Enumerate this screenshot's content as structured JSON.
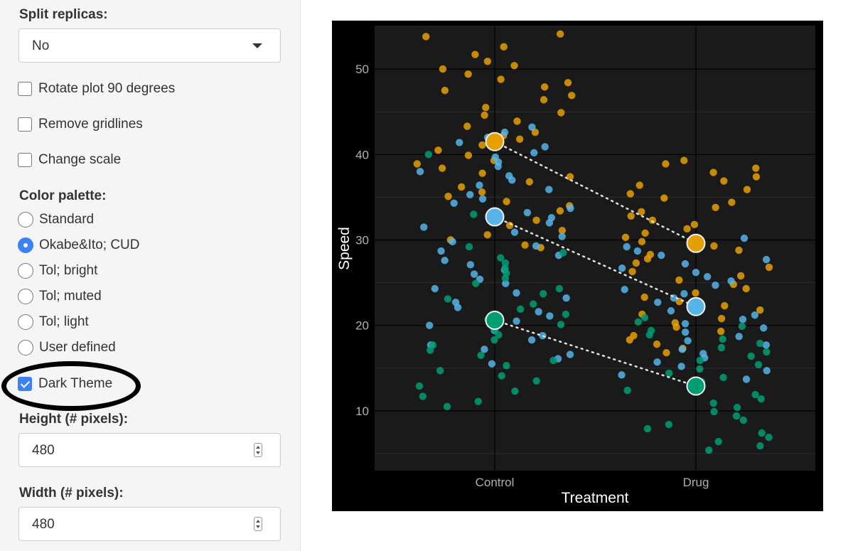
{
  "sidebar": {
    "split_replicas_label": "Split replicas:",
    "split_replicas_value": "No",
    "rotate_label": "Rotate plot 90 degrees",
    "rotate_checked": false,
    "gridlines_label": "Remove gridlines",
    "gridlines_checked": false,
    "scale_label": "Change scale",
    "scale_checked": false,
    "palette_label": "Color palette:",
    "palette_options": [
      {
        "label": "Standard",
        "selected": false
      },
      {
        "label": "Okabe&Ito; CUD",
        "selected": true
      },
      {
        "label": "Tol; bright",
        "selected": false
      },
      {
        "label": "Tol; muted",
        "selected": false
      },
      {
        "label": "Tol; light",
        "selected": false
      },
      {
        "label": "User defined",
        "selected": false
      }
    ],
    "dark_theme_label": "Dark Theme",
    "dark_theme_checked": true,
    "height_label": "Height (# pixels):",
    "height_value": "480",
    "width_label": "Width (# pixels):",
    "width_value": "480"
  },
  "colors": {
    "accent": "#3b82f6",
    "annotation": "#000000",
    "plot_background": "#000000",
    "panel_background": "#1a1a1a",
    "replica_1": "#e69f00",
    "replica_2": "#56b4e9",
    "replica_3": "#009e73"
  },
  "chart_data": {
    "type": "scatter",
    "title": "",
    "xlabel": "Treatment",
    "ylabel": "Speed",
    "categories": [
      "Control",
      "Drug"
    ],
    "y_ticks": [
      10,
      20,
      30,
      40,
      50
    ],
    "ylim": [
      3,
      55
    ],
    "grid": true,
    "legend": "none",
    "replica_means": [
      {
        "color": "#e69f00",
        "values": [
          41.5,
          29.6
        ]
      },
      {
        "color": "#56b4e9",
        "values": [
          32.7,
          22.2
        ]
      },
      {
        "color": "#009e73",
        "values": [
          20.6,
          12.9
        ]
      }
    ],
    "points": [
      {
        "cat": "Control",
        "color": "#e69f00",
        "y": [
          54.1,
          53.8,
          52.6,
          51.7,
          50.9,
          50.4,
          50.0,
          49.4,
          48.8,
          48.4,
          47.9,
          47.5,
          46.9,
          46.4,
          45.5,
          44.9,
          44.6,
          43.9,
          43.3,
          42.6,
          42.2,
          41.8,
          41.1,
          40.5,
          39.9,
          39.3,
          38.9,
          38.4,
          37.8,
          37.4,
          36.8,
          36.2,
          35.6,
          35.1,
          34.5,
          34.0,
          33.4,
          32.8,
          32.3,
          31.7,
          31.1,
          30.6,
          30.0,
          29.4,
          29.1
        ]
      },
      {
        "cat": "Control",
        "color": "#56b4e9",
        "y": [
          43.2,
          42.6,
          42.0,
          41.4,
          40.9,
          40.2,
          39.7,
          39.1,
          38.6,
          38.0,
          37.5,
          37.0,
          36.4,
          35.9,
          35.3,
          34.8,
          34.3,
          33.7,
          33.2,
          32.6,
          32.0,
          31.5,
          30.9,
          30.4,
          29.8,
          29.3,
          28.7,
          28.2,
          27.6,
          27.1,
          26.5,
          26.0,
          25.4,
          24.9,
          24.3,
          23.8,
          23.2,
          22.7,
          22.1,
          21.6,
          21.1,
          20.5,
          20.0,
          19.4,
          18.8,
          18.3,
          17.7,
          17.2,
          16.6,
          16.1,
          15.5
        ]
      },
      {
        "cat": "Control",
        "color": "#009e73",
        "y": [
          40.0,
          33.0,
          29.2,
          28.5,
          27.9,
          27.3,
          26.7,
          26.1,
          25.5,
          24.9,
          24.3,
          23.7,
          23.1,
          22.5,
          21.9,
          21.3,
          20.7,
          20.1,
          19.5,
          18.9,
          18.3,
          17.7,
          17.1,
          16.5,
          15.9,
          15.3,
          14.7,
          14.1,
          13.5,
          12.9,
          12.3,
          11.7,
          11.1,
          10.5
        ]
      },
      {
        "cat": "Drug",
        "color": "#e69f00",
        "y": [
          39.3,
          38.9,
          38.4,
          37.9,
          37.4,
          36.9,
          36.4,
          35.9,
          35.4,
          34.9,
          34.4,
          33.8,
          33.3,
          32.8,
          32.3,
          31.8,
          31.3,
          30.8,
          30.3,
          29.8,
          29.3,
          28.8,
          28.3,
          27.8,
          27.3,
          26.8,
          26.3,
          25.8,
          25.3,
          24.8,
          24.3,
          23.8,
          23.3,
          22.8,
          22.3,
          21.8,
          21.3,
          20.8,
          20.3,
          19.8,
          19.3,
          18.8,
          18.3,
          17.8,
          17.3,
          16.8
        ]
      },
      {
        "cat": "Drug",
        "color": "#56b4e9",
        "y": [
          30.2,
          29.7,
          29.2,
          28.7,
          28.2,
          27.7,
          27.2,
          26.7,
          26.2,
          25.7,
          25.2,
          24.7,
          24.2,
          23.7,
          23.2,
          22.7,
          22.2,
          21.7,
          21.2,
          20.7,
          20.2,
          19.7,
          19.2,
          18.7,
          18.2,
          17.7,
          17.2,
          16.7,
          16.2,
          15.7,
          15.2,
          14.7,
          14.2,
          13.7
        ]
      },
      {
        "cat": "Drug",
        "color": "#009e73",
        "y": [
          20.9,
          20.4,
          19.9,
          19.4,
          18.9,
          18.4,
          17.9,
          17.4,
          16.9,
          16.4,
          15.9,
          15.4,
          14.9,
          14.4,
          13.9,
          13.4,
          12.9,
          12.4,
          11.9,
          11.4,
          10.9,
          10.4,
          9.9,
          9.4,
          8.9,
          8.4,
          7.9,
          7.4,
          6.9,
          6.4,
          5.9,
          5.4
        ]
      }
    ]
  }
}
